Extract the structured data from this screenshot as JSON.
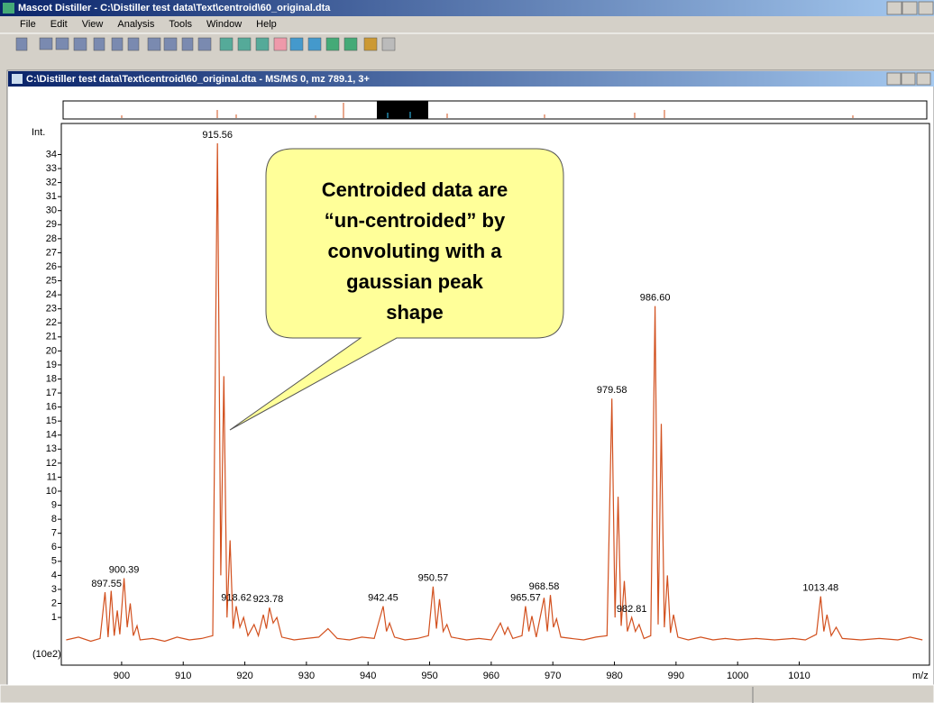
{
  "window": {
    "title": "Mascot Distiller - C:\\Distiller test data\\Text\\centroid\\60_original.dta",
    "menu": [
      "File",
      "Edit",
      "View",
      "Analysis",
      "Tools",
      "Window",
      "Help"
    ]
  },
  "document": {
    "title": "C:\\Distiller test data\\Text\\centroid\\60_original.dta - MS/MS 0, mz 789.1, 3+"
  },
  "callout": {
    "lines": [
      "Centroided data are",
      "“un-centroided” by",
      "convoluting with a",
      "gaussian peak",
      "shape"
    ]
  },
  "chart_data": {
    "type": "line",
    "y_label": "Int.",
    "y_unit": "(10e2)",
    "x_label": "m/z",
    "color": "#d2501e",
    "xlim": [
      890.5,
      1031
    ],
    "ylim": [
      -2.4,
      35.7
    ],
    "xticks": [
      900,
      910,
      920,
      930,
      940,
      950,
      960,
      970,
      980,
      990,
      1000,
      1010
    ],
    "yticks": [
      1,
      2,
      3,
      4,
      5,
      6,
      7,
      8,
      9,
      10,
      11,
      12,
      13,
      14,
      15,
      16,
      17,
      18,
      19,
      20,
      21,
      22,
      23,
      24,
      25,
      26,
      27,
      28,
      29,
      30,
      31,
      32,
      33,
      34
    ],
    "x": [
      891,
      893,
      895,
      896.5,
      897.3,
      897.8,
      898.3,
      898.8,
      899.3,
      899.7,
      900.4,
      900.9,
      901.4,
      901.9,
      902.5,
      903,
      905,
      907,
      909,
      911,
      913,
      914.8,
      915.56,
      916.1,
      916.6,
      917.1,
      917.6,
      918.1,
      918.6,
      919.2,
      919.8,
      920.5,
      921.5,
      922.2,
      923,
      923.5,
      924,
      924.6,
      925.2,
      926,
      928,
      930,
      932,
      933.5,
      935,
      937,
      939,
      941,
      942.45,
      943,
      943.5,
      944.3,
      946,
      948,
      949.8,
      950.57,
      951.1,
      951.6,
      952.2,
      952.8,
      953.5,
      956,
      958,
      960,
      961.5,
      962.2,
      962.7,
      963.5,
      965,
      965.57,
      966.1,
      966.6,
      967.3,
      968.58,
      969.1,
      969.6,
      970.1,
      970.6,
      971.3,
      973,
      975,
      977,
      978.8,
      979.58,
      980.1,
      980.6,
      981.1,
      981.6,
      982.1,
      982.81,
      983.4,
      984,
      984.8,
      985.9,
      986.6,
      987.1,
      987.6,
      988.1,
      988.6,
      989.1,
      989.6,
      990.3,
      992,
      994,
      996,
      998,
      1000,
      1003,
      1006,
      1009,
      1011,
      1012.8,
      1013.48,
      1014,
      1014.5,
      1015.2,
      1016,
      1017,
      1020,
      1023,
      1026,
      1028,
      1030
    ],
    "values": [
      -0.6,
      -0.4,
      -0.7,
      -0.5,
      2.8,
      -0.4,
      2.9,
      -0.3,
      1.5,
      -0.2,
      3.8,
      0.3,
      2.0,
      -0.3,
      0.4,
      -0.6,
      -0.5,
      -0.7,
      -0.4,
      -0.6,
      -0.5,
      -0.3,
      34.8,
      4.0,
      18.2,
      1.0,
      6.5,
      0.2,
      1.8,
      0.3,
      1.0,
      -0.3,
      0.5,
      -0.3,
      1.2,
      0.2,
      1.7,
      0.6,
      1.0,
      -0.4,
      -0.6,
      -0.5,
      -0.4,
      0.2,
      -0.5,
      -0.6,
      -0.4,
      -0.5,
      1.8,
      0.0,
      0.6,
      -0.4,
      -0.6,
      -0.5,
      -0.3,
      3.2,
      0.2,
      2.3,
      0.0,
      0.5,
      -0.4,
      -0.6,
      -0.5,
      -0.6,
      0.6,
      -0.2,
      0.3,
      -0.5,
      -0.3,
      1.8,
      0.0,
      1.1,
      -0.4,
      2.4,
      0.0,
      2.6,
      0.3,
      0.9,
      -0.4,
      -0.5,
      -0.6,
      -0.4,
      -0.3,
      16.6,
      1.0,
      9.6,
      0.4,
      3.6,
      0.0,
      1.0,
      0.0,
      0.5,
      -0.5,
      -0.3,
      23.2,
      0.5,
      14.8,
      0.3,
      4.0,
      -0.1,
      1.2,
      -0.4,
      -0.6,
      -0.4,
      -0.6,
      -0.5,
      -0.6,
      -0.5,
      -0.6,
      -0.5,
      -0.6,
      -0.2,
      2.5,
      0.0,
      1.2,
      -0.3,
      0.3,
      -0.5,
      -0.6,
      -0.5,
      -0.6,
      -0.4,
      -0.6
    ],
    "annotations": [
      {
        "label": "897.55",
        "x": 897.55,
        "y": 2.8
      },
      {
        "label": "900.39",
        "x": 900.39,
        "y": 3.8
      },
      {
        "label": "915.56",
        "x": 915.56,
        "y": 34.8
      },
      {
        "label": "918.62",
        "x": 918.62,
        "y": 1.8
      },
      {
        "label": "923.78",
        "x": 923.78,
        "y": 1.7
      },
      {
        "label": "942.45",
        "x": 942.45,
        "y": 1.8
      },
      {
        "label": "950.57",
        "x": 950.57,
        "y": 3.2
      },
      {
        "label": "965.57",
        "x": 965.57,
        "y": 1.8
      },
      {
        "label": "968.58",
        "x": 968.58,
        "y": 2.6
      },
      {
        "label": "979.58",
        "x": 979.58,
        "y": 16.6
      },
      {
        "label": "982.81",
        "x": 982.81,
        "y": 1.0
      },
      {
        "label": "986.60",
        "x": 986.6,
        "y": 23.2
      },
      {
        "label": "1013.48",
        "x": 1013.48,
        "y": 2.5
      }
    ]
  }
}
